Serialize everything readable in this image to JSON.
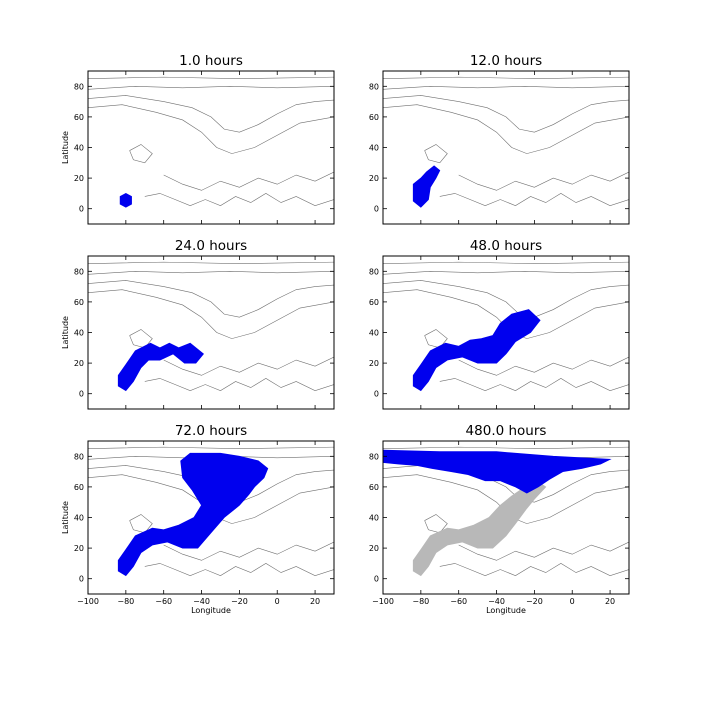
{
  "chart_data": [
    {
      "type": "area",
      "title": "1.0 hours",
      "xlabel": "",
      "ylabel": "Latitude",
      "xlim": [
        -100,
        30
      ],
      "ylim": [
        -10,
        90
      ],
      "xticks": [],
      "yticks": [
        "0",
        "20",
        "40",
        "60",
        "80"
      ],
      "series": [
        {
          "color": "#0000ee",
          "points": [
            [
              -83,
              8
            ],
            [
              -80,
              10
            ],
            [
              -77,
              8
            ],
            [
              -77,
              3
            ],
            [
              -80,
              1
            ],
            [
              -83,
              3
            ]
          ]
        }
      ]
    },
    {
      "type": "area",
      "title": "12.0 hours",
      "xlabel": "",
      "ylabel": "",
      "xlim": [
        -100,
        30
      ],
      "ylim": [
        -10,
        90
      ],
      "xticks": [],
      "yticks": [
        "0",
        "20",
        "40",
        "60",
        "80"
      ],
      "series": [
        {
          "color": "#0000ee",
          "points": [
            [
              -84,
              16
            ],
            [
              -80,
              20
            ],
            [
              -77,
              24
            ],
            [
              -73,
              28
            ],
            [
              -70,
              25
            ],
            [
              -72,
              20
            ],
            [
              -75,
              14
            ],
            [
              -76,
              6
            ],
            [
              -80,
              1
            ],
            [
              -84,
              5
            ]
          ]
        }
      ]
    },
    {
      "type": "area",
      "title": "24.0 hours",
      "xlabel": "",
      "ylabel": "Latitude",
      "xlim": [
        -100,
        30
      ],
      "ylim": [
        -10,
        90
      ],
      "xticks": [],
      "yticks": [
        "0",
        "20",
        "40",
        "60",
        "80"
      ],
      "series": [
        {
          "color": "#0000ee",
          "points": [
            [
              -84,
              12
            ],
            [
              -80,
              19
            ],
            [
              -75,
              28
            ],
            [
              -67,
              33
            ],
            [
              -62,
              30
            ],
            [
              -57,
              33
            ],
            [
              -52,
              30
            ],
            [
              -46,
              33
            ],
            [
              -39,
              26
            ],
            [
              -43,
              20
            ],
            [
              -49,
              20
            ],
            [
              -55,
              26
            ],
            [
              -62,
              22
            ],
            [
              -68,
              22
            ],
            [
              -72,
              17
            ],
            [
              -76,
              8
            ],
            [
              -80,
              2
            ],
            [
              -84,
              5
            ]
          ]
        }
      ]
    },
    {
      "type": "area",
      "title": "48.0 hours",
      "xlabel": "",
      "ylabel": "",
      "xlim": [
        -100,
        30
      ],
      "ylim": [
        -10,
        90
      ],
      "xticks": [],
      "yticks": [
        "0",
        "20",
        "40",
        "60",
        "80"
      ],
      "series": [
        {
          "color": "#0000ee",
          "points": [
            [
              -84,
              12
            ],
            [
              -80,
              19
            ],
            [
              -75,
              28
            ],
            [
              -67,
              33
            ],
            [
              -60,
              31
            ],
            [
              -54,
              35
            ],
            [
              -48,
              36
            ],
            [
              -42,
              38
            ],
            [
              -38,
              46
            ],
            [
              -32,
              52
            ],
            [
              -23,
              55
            ],
            [
              -17,
              48
            ],
            [
              -22,
              40
            ],
            [
              -30,
              34
            ],
            [
              -35,
              26
            ],
            [
              -40,
              20
            ],
            [
              -50,
              20
            ],
            [
              -58,
              24
            ],
            [
              -66,
              22
            ],
            [
              -72,
              17
            ],
            [
              -76,
              8
            ],
            [
              -80,
              2
            ],
            [
              -84,
              5
            ]
          ]
        }
      ]
    },
    {
      "type": "area",
      "title": "72.0 hours",
      "xlabel": "Longitude",
      "ylabel": "Latitude",
      "xlim": [
        -100,
        30
      ],
      "ylim": [
        -10,
        90
      ],
      "xticks": [
        "−100",
        "−80",
        "−60",
        "−40",
        "−20",
        "0",
        "20"
      ],
      "yticks": [
        "0",
        "20",
        "40",
        "60",
        "80"
      ],
      "series": [
        {
          "color": "#0000ee",
          "points": [
            [
              -84,
              12
            ],
            [
              -80,
              19
            ],
            [
              -75,
              28
            ],
            [
              -66,
              33
            ],
            [
              -60,
              32
            ],
            [
              -52,
              35
            ],
            [
              -44,
              40
            ],
            [
              -40,
              48
            ],
            [
              -45,
              58
            ],
            [
              -50,
              66
            ],
            [
              -51,
              77
            ],
            [
              -46,
              82
            ],
            [
              -30,
              82
            ],
            [
              -20,
              80
            ],
            [
              -10,
              77
            ],
            [
              -5,
              72
            ],
            [
              -7,
              66
            ],
            [
              -12,
              60
            ],
            [
              -15,
              55
            ],
            [
              -20,
              48
            ],
            [
              -28,
              40
            ],
            [
              -35,
              30
            ],
            [
              -42,
              20
            ],
            [
              -50,
              20
            ],
            [
              -58,
              24
            ],
            [
              -66,
              22
            ],
            [
              -72,
              17
            ],
            [
              -76,
              8
            ],
            [
              -80,
              2
            ],
            [
              -84,
              5
            ]
          ]
        }
      ]
    },
    {
      "type": "area",
      "title": "480.0 hours",
      "xlabel": "Longitude",
      "ylabel": "",
      "xlim": [
        -100,
        30
      ],
      "ylim": [
        -10,
        90
      ],
      "xticks": [
        "−100",
        "−80",
        "−60",
        "−40",
        "−20",
        "0",
        "20"
      ],
      "yticks": [
        "0",
        "20",
        "40",
        "60",
        "80"
      ],
      "series": [
        {
          "color": "#b8b8b8",
          "points": [
            [
              -84,
              12
            ],
            [
              -80,
              19
            ],
            [
              -75,
              28
            ],
            [
              -66,
              33
            ],
            [
              -60,
              32
            ],
            [
              -52,
              35
            ],
            [
              -44,
              40
            ],
            [
              -38,
              48
            ],
            [
              -32,
              54
            ],
            [
              -25,
              60
            ],
            [
              -20,
              65
            ],
            [
              -14,
              60
            ],
            [
              -20,
              52
            ],
            [
              -24,
              46
            ],
            [
              -30,
              36
            ],
            [
              -35,
              28
            ],
            [
              -42,
              20
            ],
            [
              -50,
              20
            ],
            [
              -58,
              24
            ],
            [
              -66,
              22
            ],
            [
              -72,
              17
            ],
            [
              -76,
              8
            ],
            [
              -80,
              2
            ],
            [
              -84,
              5
            ]
          ]
        },
        {
          "color": "#0000ee",
          "points": [
            [
              -100,
              84
            ],
            [
              -70,
              83
            ],
            [
              -40,
              83
            ],
            [
              -10,
              80
            ],
            [
              20,
              78
            ],
            [
              15,
              75
            ],
            [
              5,
              72
            ],
            [
              -5,
              70
            ],
            [
              -12,
              65
            ],
            [
              -18,
              60
            ],
            [
              -24,
              56
            ],
            [
              -30,
              60
            ],
            [
              -38,
              64
            ],
            [
              -46,
              64
            ],
            [
              -55,
              68
            ],
            [
              -64,
              70
            ],
            [
              -74,
              72
            ],
            [
              -82,
              74
            ],
            [
              -92,
              75
            ],
            [
              -100,
              76
            ]
          ]
        }
      ]
    }
  ]
}
